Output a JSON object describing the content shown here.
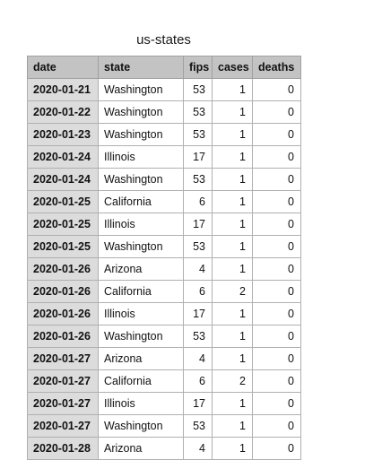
{
  "sheet": {
    "title": "us-states"
  },
  "table": {
    "columns": [
      "date",
      "state",
      "fips",
      "cases",
      "deaths"
    ],
    "rows": [
      {
        "date": "2020-01-21",
        "state": "Washington",
        "fips": "53",
        "cases": "1",
        "deaths": "0"
      },
      {
        "date": "2020-01-22",
        "state": "Washington",
        "fips": "53",
        "cases": "1",
        "deaths": "0"
      },
      {
        "date": "2020-01-23",
        "state": "Washington",
        "fips": "53",
        "cases": "1",
        "deaths": "0"
      },
      {
        "date": "2020-01-24",
        "state": "Illinois",
        "fips": "17",
        "cases": "1",
        "deaths": "0"
      },
      {
        "date": "2020-01-24",
        "state": "Washington",
        "fips": "53",
        "cases": "1",
        "deaths": "0"
      },
      {
        "date": "2020-01-25",
        "state": "California",
        "fips": "6",
        "cases": "1",
        "deaths": "0"
      },
      {
        "date": "2020-01-25",
        "state": "Illinois",
        "fips": "17",
        "cases": "1",
        "deaths": "0"
      },
      {
        "date": "2020-01-25",
        "state": "Washington",
        "fips": "53",
        "cases": "1",
        "deaths": "0"
      },
      {
        "date": "2020-01-26",
        "state": "Arizona",
        "fips": "4",
        "cases": "1",
        "deaths": "0"
      },
      {
        "date": "2020-01-26",
        "state": "California",
        "fips": "6",
        "cases": "2",
        "deaths": "0"
      },
      {
        "date": "2020-01-26",
        "state": "Illinois",
        "fips": "17",
        "cases": "1",
        "deaths": "0"
      },
      {
        "date": "2020-01-26",
        "state": "Washington",
        "fips": "53",
        "cases": "1",
        "deaths": "0"
      },
      {
        "date": "2020-01-27",
        "state": "Arizona",
        "fips": "4",
        "cases": "1",
        "deaths": "0"
      },
      {
        "date": "2020-01-27",
        "state": "California",
        "fips": "6",
        "cases": "2",
        "deaths": "0"
      },
      {
        "date": "2020-01-27",
        "state": "Illinois",
        "fips": "17",
        "cases": "1",
        "deaths": "0"
      },
      {
        "date": "2020-01-27",
        "state": "Washington",
        "fips": "53",
        "cases": "1",
        "deaths": "0"
      },
      {
        "date": "2020-01-28",
        "state": "Arizona",
        "fips": "4",
        "cases": "1",
        "deaths": "0"
      }
    ]
  }
}
